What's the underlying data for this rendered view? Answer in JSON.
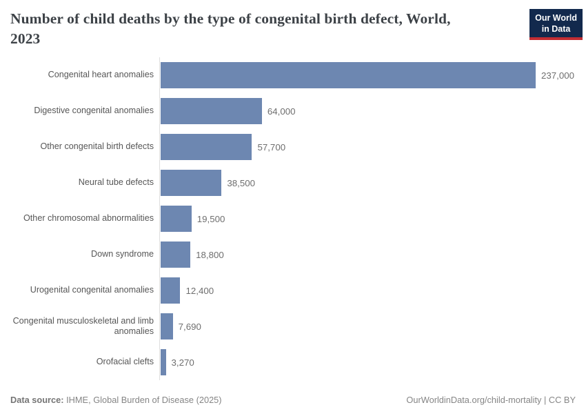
{
  "header": {
    "title_lines": [
      "Number of child deaths by the type of congenital birth defect, World,",
      "2023"
    ],
    "logo": {
      "line1": "Our World",
      "line2": "in Data",
      "bg_color": "#12294d",
      "accent_color": "#c22d33"
    }
  },
  "chart_data": {
    "type": "bar",
    "orientation": "horizontal",
    "title": "Number of child deaths by the type of congenital birth defect, World, 2023",
    "categories": [
      "Congenital heart anomalies",
      "Digestive congenital anomalies",
      "Other congenital birth defects",
      "Neural tube defects",
      "Other chromosomal abnormalities",
      "Down syndrome",
      "Urogenital congenital anomalies",
      "Congenital musculoskeletal and limb anomalies",
      "Orofacial clefts"
    ],
    "values": [
      237000,
      64000,
      57700,
      38500,
      19500,
      18800,
      12400,
      7690,
      3270
    ],
    "value_labels": [
      "237,000",
      "64,000",
      "57,700",
      "38,500",
      "19,500",
      "18,800",
      "12,400",
      "7,690",
      "3,270"
    ],
    "xlim": [
      0,
      237000
    ],
    "grid": false,
    "legend": "none",
    "bar_color": "#6d87b1",
    "axis_line_color": "#dedede"
  },
  "footer": {
    "datasource_label": "Data source:",
    "datasource_text": " IHME, Global Burden of Disease (2025)",
    "link_text": "OurWorldinData.org/child-mortality",
    "separator": " | ",
    "license": "CC BY"
  }
}
